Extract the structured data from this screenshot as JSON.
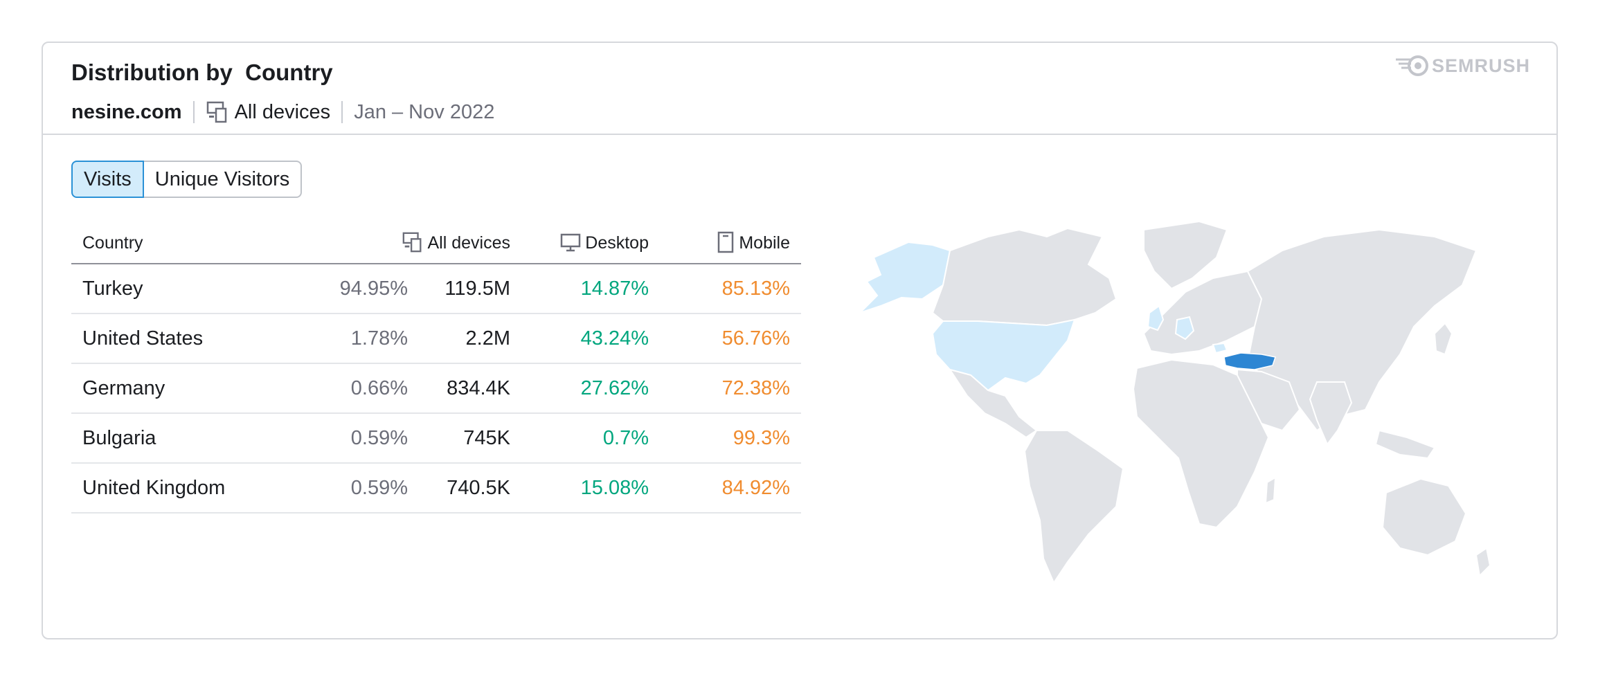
{
  "header": {
    "title": "Distribution by  Country",
    "domain": "nesine.com",
    "devices": "All devices",
    "period": "Jan – Nov 2022",
    "brand": "SEMRUSH"
  },
  "tabs": [
    {
      "label": "Visits",
      "active": true
    },
    {
      "label": "Unique Visitors",
      "active": false
    }
  ],
  "table": {
    "columns": {
      "country": "Country",
      "all_devices": "All devices",
      "desktop": "Desktop",
      "mobile": "Mobile"
    },
    "rows": [
      {
        "country": "Turkey",
        "share": "94.95%",
        "visits": "119.5M",
        "desktop": "14.87%",
        "mobile": "85.13%"
      },
      {
        "country": "United States",
        "share": "1.78%",
        "visits": "2.2M",
        "desktop": "43.24%",
        "mobile": "56.76%"
      },
      {
        "country": "Germany",
        "share": "0.66%",
        "visits": "834.4K",
        "desktop": "27.62%",
        "mobile": "72.38%"
      },
      {
        "country": "Bulgaria",
        "share": "0.59%",
        "visits": "745K",
        "desktop": "0.7%",
        "mobile": "99.3%"
      },
      {
        "country": "United Kingdom",
        "share": "0.59%",
        "visits": "740.5K",
        "desktop": "15.08%",
        "mobile": "84.92%"
      }
    ]
  },
  "colors": {
    "desktop": "#00a67e",
    "mobile": "#f08c2f",
    "map_highlight_strong": "#2d86d3",
    "map_highlight_light": "#d2ebfb",
    "map_land": "#e1e3e7"
  },
  "icons": {
    "devices": "devices-icon",
    "desktop": "desktop-icon",
    "mobile": "mobile-icon",
    "brand": "semrush-logo-icon"
  }
}
